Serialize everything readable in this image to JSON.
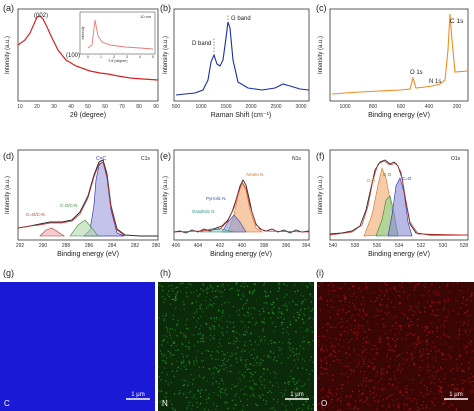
{
  "panels": {
    "a": {
      "label": "(a)",
      "xlabel": "2θ (degree)",
      "ylabel": "Intensity (a.u.)",
      "xticks": [
        "10",
        "20",
        "30",
        "40",
        "50",
        "60",
        "70",
        "80",
        "90"
      ],
      "peaks": [
        "(002)",
        "(100)"
      ],
      "inset": {
        "legend": "10 cm",
        "ylabel": "Intensity",
        "xlabel": "2 θ (degree)",
        "xticks": [
          "0",
          "1",
          "2",
          "3",
          "4",
          "5"
        ]
      }
    },
    "b": {
      "label": "(b)",
      "xlabel": "Raman Shift (cm⁻¹)",
      "ylabel": "Intensity (a.u.)",
      "xticks": [
        "500",
        "1000",
        "1500",
        "2000",
        "2500",
        "3000"
      ],
      "bands": [
        "D band",
        "G band"
      ]
    },
    "c": {
      "label": "(c)",
      "xlabel": "Binding energy (eV)",
      "ylabel": "Intensity (a.u.)",
      "xticks": [
        "1000",
        "800",
        "600",
        "400",
        "200"
      ],
      "peaks": [
        "C 1s",
        "O 1s",
        "N 1s"
      ]
    },
    "d": {
      "label": "(d)",
      "xlabel": "Binding energy (eV)",
      "ylabel": "Intensity (a.u.)",
      "xticks": [
        "292",
        "290",
        "288",
        "286",
        "284",
        "282",
        "280"
      ],
      "tag": "C1s",
      "peaks": [
        "C=C",
        "C-O/C-N",
        "C=O/C-N"
      ]
    },
    "e": {
      "label": "(e)",
      "xlabel": "Binding energy (eV)",
      "ylabel": "Intensity (a.u.)",
      "xticks": [
        "406",
        "404",
        "402",
        "400",
        "398",
        "396",
        "394"
      ],
      "tag": "N1s",
      "peaks": [
        "Amino N",
        "Pyrrolic N",
        "Graphitic N"
      ]
    },
    "f": {
      "label": "(f)",
      "xlabel": "Binding energy (eV)",
      "ylabel": "Intensity (a.u.)",
      "xticks": [
        "540",
        "538",
        "536",
        "534",
        "532",
        "530",
        "528"
      ],
      "tag": "O1s",
      "peaks": [
        "O-H",
        "C-O",
        "C=O"
      ]
    },
    "g": {
      "label": "(g)",
      "element": "C",
      "scale": "1 μm",
      "color": "#1a1ad6"
    },
    "h": {
      "label": "(h)",
      "element": "N",
      "scale": "1 μm",
      "color": "#22a022"
    },
    "i": {
      "label": "(i)",
      "element": "O",
      "scale": "1 μm",
      "color": "#c41414"
    }
  },
  "chart_data": [
    {
      "panel": "a",
      "type": "line",
      "title": "",
      "xlabel": "2θ (degree)",
      "ylabel": "Intensity (a.u.)",
      "xlim": [
        10,
        90
      ],
      "x": [
        10,
        12,
        14,
        16,
        18,
        20,
        22,
        24,
        26,
        28,
        30,
        34,
        38,
        42,
        44,
        46,
        50,
        56,
        62,
        70,
        80,
        90
      ],
      "y": [
        0.45,
        0.55,
        0.66,
        0.78,
        0.9,
        0.98,
        1.0,
        0.95,
        0.84,
        0.7,
        0.58,
        0.44,
        0.37,
        0.33,
        0.33,
        0.31,
        0.29,
        0.27,
        0.26,
        0.25,
        0.24,
        0.24
      ],
      "color": "#d62222",
      "annotations": [
        "(002)",
        "(100)"
      ]
    },
    {
      "panel": "b",
      "type": "line",
      "title": "",
      "xlabel": "Raman Shift (cm⁻¹)",
      "ylabel": "Intensity (a.u.)",
      "xlim": [
        500,
        3200
      ],
      "x": [
        500,
        800,
        1000,
        1200,
        1300,
        1350,
        1400,
        1450,
        1500,
        1560,
        1590,
        1620,
        1700,
        1900,
        2200,
        2450,
        2650,
        2800,
        2950,
        3200
      ],
      "y": [
        0.05,
        0.06,
        0.08,
        0.2,
        0.5,
        0.62,
        0.45,
        0.4,
        0.55,
        0.9,
        1.0,
        0.75,
        0.25,
        0.12,
        0.1,
        0.12,
        0.18,
        0.14,
        0.1,
        0.08
      ],
      "color": "#1a2ea8",
      "annotations": [
        "D band",
        "G band"
      ]
    },
    {
      "panel": "c",
      "type": "line",
      "title": "",
      "xlabel": "Binding energy (eV)",
      "ylabel": "Intensity (a.u.)",
      "xlim": [
        1100,
        200
      ],
      "x": [
        1100,
        1000,
        900,
        800,
        700,
        600,
        560,
        532,
        525,
        450,
        400,
        350,
        300,
        290,
        284,
        270,
        250,
        200
      ],
      "y": [
        0.1,
        0.11,
        0.12,
        0.13,
        0.13,
        0.14,
        0.15,
        0.3,
        0.17,
        0.16,
        0.18,
        0.17,
        0.2,
        0.5,
        1.0,
        0.3,
        0.22,
        0.22
      ],
      "color": "#f08c1e",
      "annotations": [
        "C 1s",
        "O 1s",
        "N 1s"
      ]
    },
    {
      "panel": "d",
      "type": "line",
      "title": "",
      "xlabel": "Binding energy (eV)",
      "ylabel": "Intensity (a.u.)",
      "xlim": [
        292,
        280
      ],
      "x": [
        292,
        291,
        290,
        289,
        288,
        287,
        286,
        285.5,
        285,
        284.6,
        284,
        283.5,
        283,
        282.5,
        282,
        281,
        280
      ],
      "y": [
        0.08,
        0.09,
        0.12,
        0.13,
        0.15,
        0.2,
        0.35,
        0.6,
        0.9,
        1.0,
        0.92,
        0.6,
        0.3,
        0.12,
        0.06,
        0.03,
        0.02
      ],
      "color": "#2a2a2a",
      "series": [
        {
          "name": "C=C",
          "center": 284.6,
          "height": 0.9
        },
        {
          "name": "C-O/C-N",
          "center": 286.2,
          "height": 0.22
        },
        {
          "name": "C=O/C-N",
          "center": 289.5,
          "height": 0.1
        }
      ]
    },
    {
      "panel": "e",
      "type": "line",
      "title": "",
      "xlabel": "Binding energy (eV)",
      "ylabel": "Intensity (a.u.)",
      "xlim": [
        406,
        394
      ],
      "x": [
        406,
        405,
        404,
        403,
        402,
        401,
        400.5,
        400,
        399.7,
        399,
        398.5,
        398,
        397,
        396,
        395,
        394
      ],
      "y": [
        0.05,
        0.05,
        0.07,
        0.09,
        0.13,
        0.3,
        0.6,
        0.85,
        1.0,
        0.8,
        0.5,
        0.3,
        0.1,
        0.05,
        0.04,
        0.04
      ],
      "color": "#2a2a2a",
      "series": [
        {
          "name": "Amino N",
          "center": 399.8,
          "height": 0.75
        },
        {
          "name": "Pyrrolic N",
          "center": 400.6,
          "height": 0.35
        },
        {
          "name": "Graphitic N",
          "center": 401.8,
          "height": 0.1
        }
      ]
    },
    {
      "panel": "f",
      "type": "line",
      "title": "",
      "xlabel": "Binding energy (eV)",
      "ylabel": "Intensity (a.u.)",
      "xlim": [
        540,
        528
      ],
      "x": [
        540,
        539,
        538,
        537,
        536,
        535,
        534.5,
        534,
        533.5,
        533,
        532.5,
        532,
        531.5,
        531,
        530,
        529,
        528
      ],
      "y": [
        0.06,
        0.07,
        0.08,
        0.1,
        0.15,
        0.35,
        0.7,
        0.95,
        1.0,
        0.97,
        0.9,
        0.85,
        0.6,
        0.3,
        0.08,
        0.04,
        0.03
      ],
      "color": "#2a2a2a",
      "series": [
        {
          "name": "O-H",
          "center": 533.8,
          "height": 0.8
        },
        {
          "name": "C-O",
          "center": 532.9,
          "height": 0.45
        },
        {
          "name": "C=O",
          "center": 531.9,
          "height": 0.75
        }
      ]
    }
  ]
}
